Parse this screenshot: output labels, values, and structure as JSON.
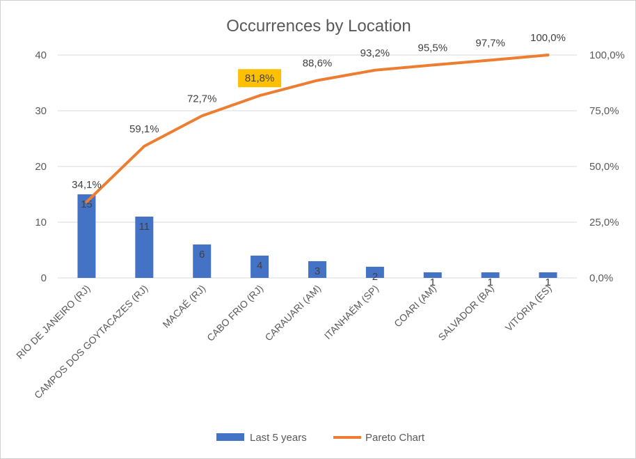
{
  "chart_data": {
    "type": "bar",
    "title": "Occurrences  by Location",
    "categories": [
      "RIO DE JANEIRO (RJ)",
      "CAMPOS DOS GOYTACAZES (RJ)",
      "MACAÉ (RJ)",
      "CABO FRIO (RJ)",
      "CARAUARI (AM)",
      "ITANHAÉM (SP)",
      "COARI (AM)",
      "SALVADOR (BA)",
      "VITÓRIA (ES)"
    ],
    "series": [
      {
        "name": "Last 5 years",
        "type": "bar",
        "axis": "left",
        "color": "#4472C4",
        "values": [
          15,
          11,
          6,
          4,
          3,
          2,
          1,
          1,
          1
        ],
        "labels": [
          "15",
          "11",
          "6",
          "4",
          "3",
          "2",
          "1",
          "1",
          "1"
        ]
      },
      {
        "name": "Pareto Chart",
        "type": "line",
        "axis": "right",
        "color": "#ED7D31",
        "values": [
          34.1,
          59.1,
          72.7,
          81.8,
          88.6,
          93.2,
          95.5,
          97.7,
          100.0
        ],
        "labels": [
          "34,1%",
          "59,1%",
          "72,7%",
          "81,8%",
          "88,6%",
          "93,2%",
          "95,5%",
          "97,7%",
          "100,0%"
        ]
      }
    ],
    "y_left": {
      "range": [
        0,
        40
      ],
      "ticks": [
        "0",
        "10",
        "20",
        "30",
        "40"
      ]
    },
    "y_right": {
      "range": [
        0,
        100
      ],
      "ticks": [
        "0,0%",
        "25,0%",
        "50,0%",
        "75,0%",
        "100,0%"
      ]
    },
    "highlight": {
      "index": 3,
      "color": "#FFC000"
    },
    "grid": true,
    "legend_position": "bottom"
  }
}
